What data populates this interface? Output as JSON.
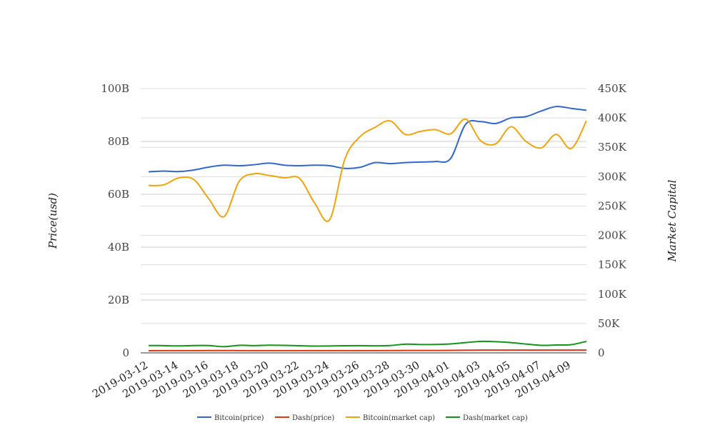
{
  "chart_data": {
    "type": "line",
    "xlabel": "",
    "ylabel": "Price(usd)",
    "ylabel_right": "Market Capital",
    "ylim": [
      0,
      100000000000
    ],
    "ylim_right": [
      0,
      450000
    ],
    "grid": true,
    "legend_position": "bottom",
    "left_ticks": [
      "0",
      "20B",
      "40B",
      "60B",
      "80B",
      "100B"
    ],
    "right_ticks": [
      "0",
      "50K",
      "100K",
      "150K",
      "200K",
      "250K",
      "300K",
      "350K",
      "400K",
      "450K"
    ],
    "x_tick_labels": [
      "2019-03-12",
      "2019-03-14",
      "2019-03-16",
      "2019-03-18",
      "2019-03-20",
      "2019-03-22",
      "2019-03-24",
      "2019-03-26",
      "2019-03-28",
      "2019-03-30",
      "2019-04-01",
      "2019-04-03",
      "2019-04-05",
      "2019-04-07",
      "2019-04-09"
    ],
    "x": [
      "2019-03-12",
      "2019-03-13",
      "2019-03-14",
      "2019-03-15",
      "2019-03-16",
      "2019-03-17",
      "2019-03-18",
      "2019-03-19",
      "2019-03-20",
      "2019-03-21",
      "2019-03-22",
      "2019-03-23",
      "2019-03-24",
      "2019-03-25",
      "2019-03-26",
      "2019-03-27",
      "2019-03-28",
      "2019-03-29",
      "2019-03-30",
      "2019-03-31",
      "2019-04-01",
      "2019-04-02",
      "2019-04-03",
      "2019-04-04",
      "2019-04-05",
      "2019-04-06",
      "2019-04-07",
      "2019-04-08",
      "2019-04-09",
      "2019-04-10"
    ],
    "series": [
      {
        "name": "Bitcoin(price)",
        "axis": "left",
        "color": "#3366cc",
        "values": [
          68500000000.0,
          68800000000.0,
          68600000000.0,
          69200000000.0,
          70300000000.0,
          71000000000.0,
          70800000000.0,
          71200000000.0,
          71800000000.0,
          71000000000.0,
          70800000000.0,
          71000000000.0,
          70800000000.0,
          69800000000.0,
          70200000000.0,
          72000000000.0,
          71600000000.0,
          72000000000.0,
          72200000000.0,
          72400000000.0,
          73500000000.0,
          86500000000.0,
          87500000000.0,
          86800000000.0,
          88900000000.0,
          89400000000.0,
          91500000000.0,
          93200000000.0,
          92500000000.0,
          91800000000.0
        ]
      },
      {
        "name": "Dash(price)",
        "axis": "left",
        "color": "#dc3912",
        "values": [
          800000000.0,
          850000000.0,
          850000000.0,
          850000000.0,
          880000000.0,
          880000000.0,
          850000000.0,
          850000000.0,
          850000000.0,
          850000000.0,
          850000000.0,
          850000000.0,
          850000000.0,
          850000000.0,
          850000000.0,
          850000000.0,
          880000000.0,
          900000000.0,
          900000000.0,
          900000000.0,
          950000000.0,
          1000000000.0,
          1050000000.0,
          1050000000.0,
          1050000000.0,
          1050000000.0,
          1050000000.0,
          1050000000.0,
          1050000000.0,
          1050000000.0
        ]
      },
      {
        "name": "Bitcoin(market cap)",
        "axis": "right",
        "color": "#f1a30c",
        "values": [
          285000,
          286000,
          298000,
          295000,
          262000,
          232000,
          292000,
          305000,
          302000,
          298000,
          297000,
          255000,
          227000,
          330000,
          368000,
          384000,
          395000,
          372000,
          377000,
          380000,
          373000,
          398000,
          361000,
          356000,
          385000,
          360000,
          349000,
          372000,
          348000,
          395000
        ]
      },
      {
        "name": "Dash(market cap)",
        "axis": "right",
        "color": "#109618",
        "values": [
          12500,
          12300,
          11800,
          12400,
          12400,
          10500,
          12800,
          12300,
          13100,
          12700,
          12200,
          11500,
          11700,
          12200,
          12300,
          12000,
          12500,
          14800,
          14200,
          14300,
          15200,
          17500,
          19500,
          19000,
          17500,
          15000,
          12800,
          13400,
          14000,
          19500
        ]
      }
    ]
  }
}
